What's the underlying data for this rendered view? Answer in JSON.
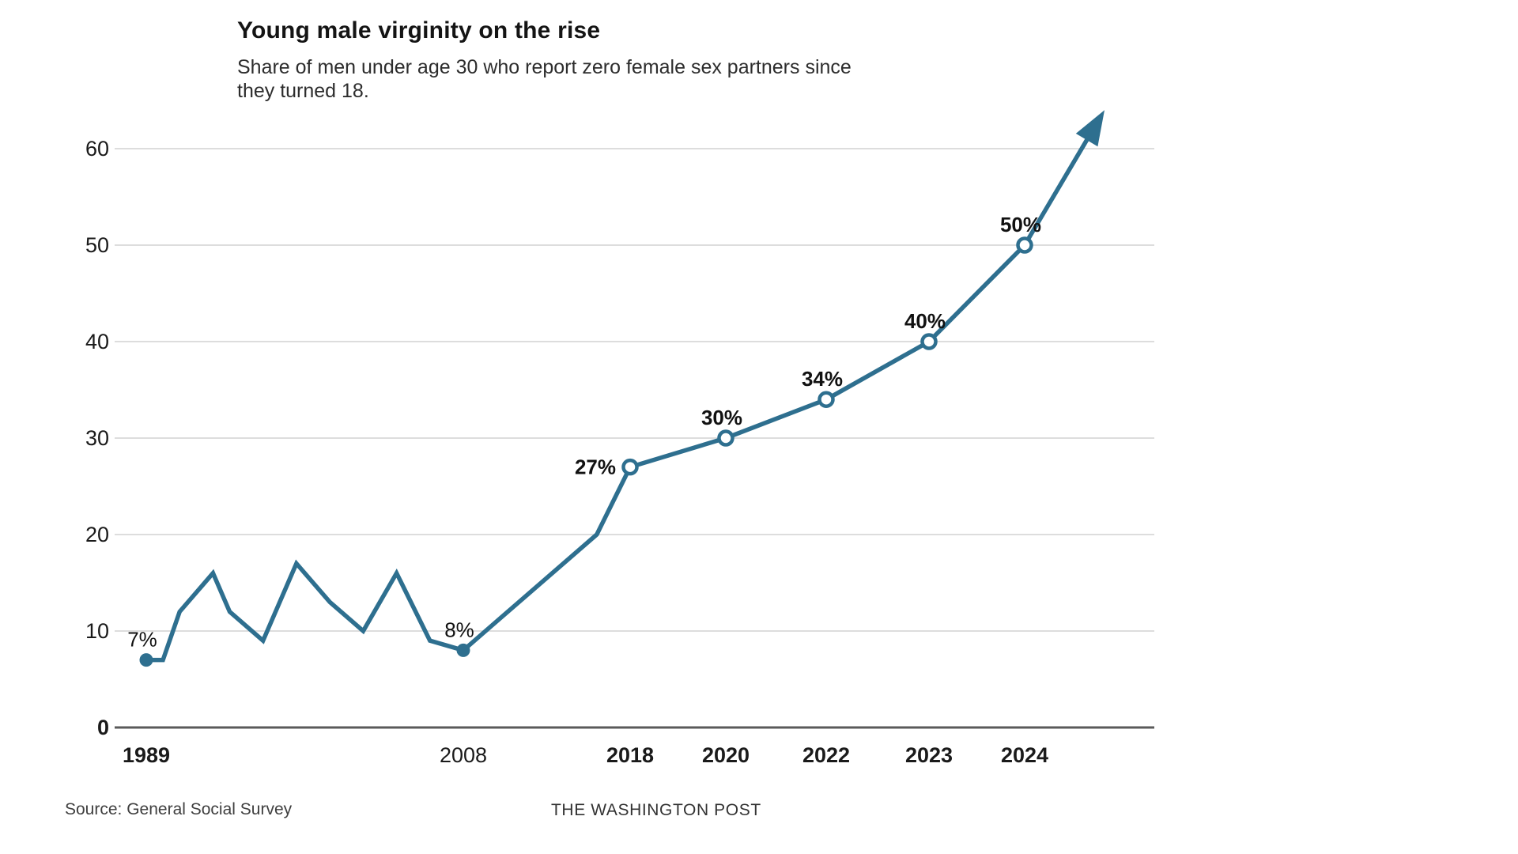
{
  "header": {
    "title": "Young male virginity on the rise",
    "subtitle_line1": "Share of men under age 30 who report zero female sex partners since",
    "subtitle_line2": "they turned 18."
  },
  "footer": {
    "source": "Source: General Social Survey",
    "credit": "THE WASHINGTON POST"
  },
  "colors": {
    "line": "#2e6f8f",
    "grid": "#d2d2d2",
    "axis": "#5a5a5a",
    "text": "#1a1a1a"
  },
  "chart_data": {
    "type": "line",
    "title": "Young male virginity on the rise",
    "subtitle": "Share of men under age 30 who report zero female sex partners since they turned 18.",
    "ylabel": "",
    "xlabel": "",
    "ylim": [
      0,
      65
    ],
    "grid": true,
    "legend": false,
    "points": [
      {
        "year": 1989,
        "value": 7,
        "label": "7%",
        "dot": "filled",
        "label_pos": "above",
        "bold_label": false
      },
      {
        "year": 1990,
        "value": 7
      },
      {
        "year": 1991,
        "value": 12
      },
      {
        "year": 1993,
        "value": 16
      },
      {
        "year": 1994,
        "value": 12
      },
      {
        "year": 1996,
        "value": 9
      },
      {
        "year": 1998,
        "value": 17
      },
      {
        "year": 2000,
        "value": 13
      },
      {
        "year": 2002,
        "value": 10
      },
      {
        "year": 2004,
        "value": 16
      },
      {
        "year": 2006,
        "value": 9
      },
      {
        "year": 2008,
        "value": 8,
        "label": "8%",
        "dot": "filled",
        "label_pos": "above",
        "bold_label": false
      },
      {
        "year": 2016,
        "value": 20
      },
      {
        "year": 2018,
        "value": 27,
        "label": "27%",
        "dot": "open",
        "label_pos": "left",
        "bold_label": true
      },
      {
        "year": 2020,
        "value": 30,
        "label": "30%",
        "dot": "open",
        "label_pos": "above",
        "bold_label": true
      },
      {
        "year": 2022,
        "value": 34,
        "label": "34%",
        "dot": "open",
        "label_pos": "above",
        "bold_label": true
      },
      {
        "year": 2023,
        "value": 40,
        "label": "40%",
        "dot": "open",
        "label_pos": "above",
        "bold_label": true
      },
      {
        "year": 2024,
        "value": 50,
        "label": "50%",
        "dot": "open",
        "label_pos": "above",
        "bold_label": true
      }
    ],
    "arrow": {
      "extends_to_value": 64
    },
    "y_axis": {
      "ticks": [
        {
          "value": 0,
          "label": "0",
          "bold": true
        },
        {
          "value": 10,
          "label": "10",
          "bold": false
        },
        {
          "value": 20,
          "label": "20",
          "bold": false
        },
        {
          "value": 30,
          "label": "30",
          "bold": false
        },
        {
          "value": 40,
          "label": "40",
          "bold": false
        },
        {
          "value": 50,
          "label": "50",
          "bold": false
        },
        {
          "value": 60,
          "label": "60",
          "bold": false
        }
      ]
    },
    "x_axis": {
      "ticks": [
        {
          "year": 1989,
          "label": "1989",
          "bold": true
        },
        {
          "year": 2008,
          "label": "2008",
          "bold": false
        },
        {
          "year": 2018,
          "label": "2018",
          "bold": true
        },
        {
          "year": 2020,
          "label": "2020",
          "bold": true
        },
        {
          "year": 2022,
          "label": "2022",
          "bold": true
        },
        {
          "year": 2023,
          "label": "2023",
          "bold": true
        },
        {
          "year": 2024,
          "label": "2024",
          "bold": true
        }
      ]
    }
  }
}
